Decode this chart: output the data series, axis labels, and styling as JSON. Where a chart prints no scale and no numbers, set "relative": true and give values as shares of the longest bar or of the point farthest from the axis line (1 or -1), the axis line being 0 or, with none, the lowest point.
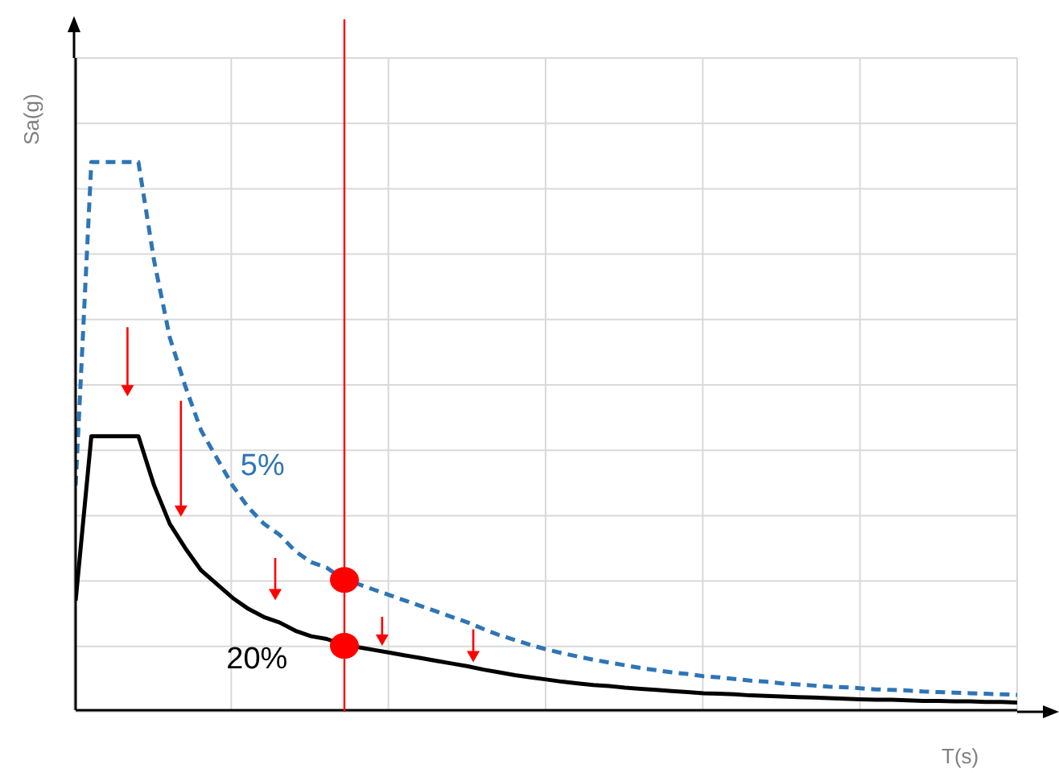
{
  "chart_data": {
    "type": "line",
    "relative": true,
    "xlabel": "T(s)",
    "ylabel": "Sa(g)",
    "grid": true,
    "marker": "none",
    "categories": [
      null,
      null,
      null,
      null,
      null,
      null,
      null,
      null,
      null,
      null,
      null,
      null,
      null,
      null,
      null,
      null,
      null,
      null,
      null,
      null,
      null,
      null,
      null,
      null,
      null,
      null,
      null,
      null,
      null,
      null,
      null,
      null,
      null,
      null,
      null,
      null,
      null,
      null,
      null,
      null,
      null,
      null,
      null,
      null,
      null,
      null,
      null,
      null,
      null,
      null,
      null,
      null,
      null,
      null,
      null,
      null,
      null,
      null,
      null,
      null,
      null
    ],
    "series": [
      {
        "name": "5%",
        "color": "#2e75b6",
        "line_style": "dashed",
        "values": [
          0.41,
          1,
          1,
          1,
          1,
          0.82,
          0.68,
          0.59,
          0.51,
          0.46,
          0.41,
          0.37,
          0.34,
          0.32,
          0.29,
          0.27,
          0.26,
          0.24,
          0.23,
          0.22,
          0.21,
          0.2,
          0.19,
          0.18,
          0.17,
          0.16,
          0.148,
          0.137,
          0.128,
          0.119,
          0.111,
          0.104,
          0.098,
          0.092,
          0.087,
          0.082,
          0.077,
          0.073,
          0.069,
          0.066,
          0.062,
          0.06,
          0.057,
          0.054,
          0.052,
          0.049,
          0.047,
          0.045,
          0.043,
          0.042,
          0.04,
          0.038,
          0.037,
          0.036,
          0.034,
          0.033,
          0.032,
          0.031,
          0.03,
          0.029,
          0.028
        ]
      },
      {
        "name": "20%",
        "color": "#000000",
        "line_style": "solid",
        "values": [
          0.2,
          0.5,
          0.5,
          0.5,
          0.5,
          0.41,
          0.34,
          0.295,
          0.255,
          0.23,
          0.205,
          0.185,
          0.17,
          0.16,
          0.145,
          0.135,
          0.13,
          0.12,
          0.115,
          0.11,
          0.105,
          0.1,
          0.095,
          0.09,
          0.085,
          0.08,
          0.074,
          0.069,
          0.064,
          0.06,
          0.056,
          0.052,
          0.049,
          0.046,
          0.044,
          0.041,
          0.039,
          0.037,
          0.035,
          0.033,
          0.031,
          0.03,
          0.029,
          0.027,
          0.026,
          0.025,
          0.024,
          0.023,
          0.022,
          0.021,
          0.02,
          0.019,
          0.019,
          0.018,
          0.017,
          0.017,
          0.016,
          0.016,
          0.015,
          0.015,
          0.014
        ]
      }
    ]
  }
}
